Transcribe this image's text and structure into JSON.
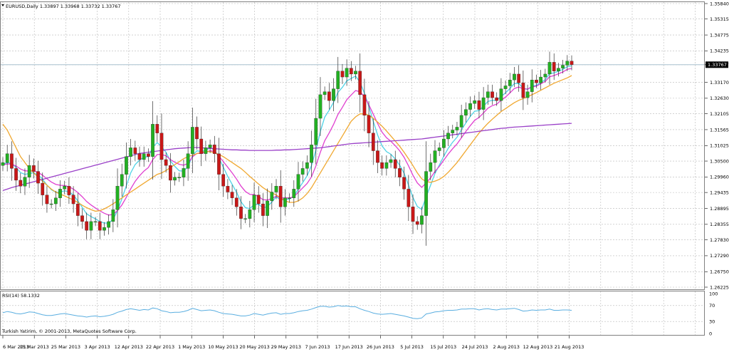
{
  "header": {
    "symbol_line": "EURUSD,Daily  1.33897 1.33968 1.33732 1.33767",
    "rsi_label": "RSI(14) 58.1332",
    "copyright": "Turkish Yatirim, © 2001-2013, MetaQuotes Software Corp."
  },
  "current_price_label": "1.33767",
  "chart_data": {
    "type": "candlestick",
    "price_axis": {
      "ylim": [
        1.26225,
        1.3584
      ],
      "ticks": [
        "1.35840",
        "1.35315",
        "1.34775",
        "1.34235",
        "1.33767",
        "1.33170",
        "1.32630",
        "1.32105",
        "1.31565",
        "1.31025",
        "1.30500",
        "1.29960",
        "1.29435",
        "1.28895",
        "1.28355",
        "1.27830",
        "1.27290",
        "1.26750",
        "1.26225"
      ]
    },
    "rsi_axis": {
      "ylim": [
        0,
        100
      ],
      "ticks": [
        "100",
        "70",
        "30",
        "0"
      ]
    },
    "x_ticks": [
      "6 Mar 2013",
      "15 Mar 2013",
      "25 Mar 2013",
      "3 Apr 2013",
      "12 Apr 2013",
      "22 Apr 2013",
      "1 May 2013",
      "10 May 2013",
      "20 May 2013",
      "29 May 2013",
      "7 Jun 2013",
      "17 Jun 2013",
      "26 Jun 2013",
      "5 Jul 2013",
      "15 Jul 2013",
      "24 Jul 2013",
      "2 Aug 2013",
      "12 Aug 2013",
      "21 Aug 2013"
    ],
    "close": [
      1.3045,
      1.3075,
      1.3025,
      1.2985,
      1.2965,
      1.2995,
      1.3035,
      1.3015,
      1.2975,
      1.2935,
      1.2905,
      1.2905,
      1.2925,
      1.2955,
      1.2965,
      1.2935,
      1.2905,
      1.2865,
      1.2845,
      1.2815,
      1.2845,
      1.2845,
      1.2815,
      1.2825,
      1.2845,
      1.2885,
      1.2965,
      1.3005,
      1.3065,
      1.3095,
      1.3075,
      1.3055,
      1.3075,
      1.3065,
      1.3175,
      1.3145,
      1.3055,
      1.3035,
      1.2985,
      1.2995,
      1.2995,
      1.3025,
      1.3075,
      1.3165,
      1.3125,
      1.3075,
      1.3095,
      1.3105,
      1.3075,
      1.3005,
      1.2965,
      1.2945,
      1.2925,
      1.2895,
      1.2855,
      1.2855,
      1.2885,
      1.2935,
      1.2905,
      1.2865,
      1.2915,
      1.2945,
      1.2965,
      1.2895,
      1.2925,
      1.2925,
      1.2955,
      1.3005,
      1.3025,
      1.3045,
      1.3105,
      1.3195,
      1.3275,
      1.3285,
      1.3255,
      1.3295,
      1.3355,
      1.3335,
      1.3365,
      1.3345,
      1.3355,
      1.3275,
      1.3205,
      1.3145,
      1.3085,
      1.3045,
      1.3025,
      1.3045,
      1.3055,
      1.3025,
      1.2995,
      1.2955,
      1.2895,
      1.2845,
      1.2835,
      1.2865,
      1.3015,
      1.3045,
      1.3085,
      1.3095,
      1.3125,
      1.3145,
      1.3155,
      1.3165,
      1.3205,
      1.3225,
      1.3245,
      1.3255,
      1.3225,
      1.3265,
      1.3285,
      1.3265,
      1.3255,
      1.3295,
      1.3305,
      1.3325,
      1.3345,
      1.3315,
      1.3265,
      1.3285,
      1.3325,
      1.3315,
      1.3335,
      1.3345,
      1.3385,
      1.3355,
      1.3365,
      1.3375,
      1.3389,
      1.3377
    ],
    "series": [
      {
        "name": "MA fast",
        "color": "#4fd3e6",
        "values": [
          1.3038,
          1.3045,
          1.3042,
          1.3028,
          1.3011,
          1.3005,
          1.3008,
          1.301,
          1.3003,
          1.2989,
          1.2969,
          1.2953,
          1.2944,
          1.2945,
          1.2949,
          1.2946,
          1.2935,
          1.2915,
          1.2893,
          1.2871,
          1.2862,
          1.2854,
          1.2845,
          1.284,
          1.284,
          1.2852,
          1.2882,
          1.2922,
          1.2966,
          1.301,
          1.3038,
          1.3053,
          1.3063,
          1.3065,
          1.3097,
          1.3113,
          1.3098,
          1.308,
          1.305,
          1.3032,
          1.3017,
          1.3016,
          1.3031,
          1.3068,
          1.3085,
          1.3082,
          1.3087,
          1.3094,
          1.3088,
          1.3061,
          1.3029,
          1.2998,
          1.2971,
          1.2944,
          1.2912,
          1.2892,
          1.2889,
          1.2902,
          1.2904,
          1.2891,
          1.2896,
          1.2911,
          1.2929,
          1.2918,
          1.292,
          1.2921,
          1.2931,
          1.2955,
          1.2977,
          1.3,
          1.3035,
          1.3088,
          1.315,
          1.3199,
          1.3222,
          1.3249,
          1.3283,
          1.33,
          1.3322,
          1.333,
          1.3338,
          1.3317,
          1.328,
          1.3235,
          1.3185,
          1.3138,
          1.3101,
          1.3082,
          1.3073,
          1.3057,
          1.3036,
          1.3009,
          1.2969,
          1.2927,
          1.2896,
          1.2886,
          1.2929,
          1.2968,
          1.3008,
          1.3037,
          1.3067,
          1.3093,
          1.3114,
          1.3131,
          1.3156,
          1.3179,
          1.3201,
          1.3219,
          1.3221,
          1.3236,
          1.3252,
          1.3256,
          1.3256,
          1.3269,
          1.3281,
          1.3296,
          1.3313,
          1.3313,
          1.3297,
          1.3293,
          1.3304,
          1.3307,
          1.3316,
          1.3326,
          1.3346,
          1.3349,
          1.3354,
          1.3361,
          1.337,
          1.3373
        ]
      },
      {
        "name": "MA medium",
        "color": "#e040d0",
        "values": [
          1.3038,
          1.304,
          1.304,
          1.3033,
          1.3023,
          1.3017,
          1.3016,
          1.3016,
          1.3012,
          1.3002,
          1.299,
          1.2979,
          1.2971,
          1.2968,
          1.2967,
          1.2963,
          1.2955,
          1.2943,
          1.2929,
          1.2913,
          1.2901,
          1.2891,
          1.2881,
          1.2873,
          1.2867,
          1.2869,
          1.2882,
          1.2901,
          1.2927,
          1.2956,
          1.2981,
          1.3,
          1.3016,
          1.3028,
          1.3055,
          1.3072,
          1.3072,
          1.3068,
          1.3055,
          1.3046,
          1.3039,
          1.3036,
          1.3042,
          1.3064,
          1.3076,
          1.3076,
          1.308,
          1.3085,
          1.3083,
          1.3067,
          1.3048,
          1.3029,
          1.301,
          1.2989,
          1.2965,
          1.2947,
          1.2937,
          1.2936,
          1.293,
          1.2919,
          1.2918,
          1.2923,
          1.2931,
          1.2925,
          1.2925,
          1.2925,
          1.2929,
          1.2944,
          1.2959,
          1.2974,
          1.2997,
          1.3034,
          1.308,
          1.3119,
          1.3145,
          1.3174,
          1.3208,
          1.3232,
          1.3258,
          1.3274,
          1.3289,
          1.3285,
          1.3268,
          1.3241,
          1.3209,
          1.3177,
          1.3148,
          1.3129,
          1.3117,
          1.3102,
          1.3085,
          1.3063,
          1.3034,
          1.3002,
          1.2976,
          1.2961,
          1.2976,
          1.2993,
          1.3015,
          1.3032,
          1.3053,
          1.3074,
          1.3092,
          1.3108,
          1.3129,
          1.315,
          1.317,
          1.3188,
          1.3198,
          1.3213,
          1.3229,
          1.3238,
          1.3243,
          1.3256,
          1.3267,
          1.3281,
          1.3296,
          1.3301,
          1.3295,
          1.3294,
          1.3301,
          1.3304,
          1.3312,
          1.332,
          1.3336,
          1.334,
          1.3346,
          1.3352,
          1.3361,
          1.3364
        ]
      },
      {
        "name": "MA slow",
        "color": "#f0a830",
        "values": [
          1.3175,
          1.3155,
          1.3125,
          1.3095,
          1.3065,
          1.3045,
          1.3025,
          1.301,
          1.2995,
          1.2982,
          1.2968,
          1.2955,
          1.2945,
          1.2938,
          1.2932,
          1.2925,
          1.2918,
          1.291,
          1.29,
          1.2892,
          1.2885,
          1.288,
          1.2882,
          1.2888,
          1.2896,
          1.2905,
          1.2915,
          1.2925,
          1.2935,
          1.2945,
          1.2955,
          1.2965,
          1.2975,
          1.2985,
          1.2995,
          1.3005,
          1.301,
          1.3018,
          1.3028,
          1.3038,
          1.3048,
          1.3058,
          1.3065,
          1.307,
          1.3075,
          1.308,
          1.3082,
          1.3082,
          1.3078,
          1.3072,
          1.3065,
          1.3055,
          1.3045,
          1.3035,
          1.3025,
          1.3012,
          1.2998,
          1.2985,
          1.2972,
          1.296,
          1.295,
          1.2942,
          1.2935,
          1.2925,
          1.2915,
          1.291,
          1.291,
          1.2915,
          1.2925,
          1.294,
          1.296,
          1.2985,
          1.301,
          1.3035,
          1.306,
          1.3085,
          1.311,
          1.3135,
          1.316,
          1.3185,
          1.32,
          1.321,
          1.321,
          1.3205,
          1.3195,
          1.3182,
          1.3168,
          1.3152,
          1.3135,
          1.3118,
          1.31,
          1.308,
          1.3058,
          1.3035,
          1.301,
          1.299,
          1.298,
          1.2978,
          1.2982,
          1.2988,
          1.2998,
          1.3012,
          1.3028,
          1.3045,
          1.3065,
          1.3085,
          1.3105,
          1.3125,
          1.3145,
          1.3162,
          1.3178,
          1.3192,
          1.3205,
          1.3218,
          1.3228,
          1.3238,
          1.3248,
          1.3256,
          1.3262,
          1.3268,
          1.3275,
          1.3282,
          1.329,
          1.3298,
          1.3306,
          1.3314,
          1.332,
          1.3326,
          1.3332,
          1.334
        ]
      },
      {
        "name": "MA long",
        "color": "#9a40c8",
        "values": [
          1.295,
          1.2955,
          1.296,
          1.2964,
          1.2968,
          1.2972,
          1.2976,
          1.298,
          1.2984,
          1.2988,
          1.2992,
          1.2996,
          1.3,
          1.3004,
          1.3008,
          1.3012,
          1.3016,
          1.302,
          1.3024,
          1.3028,
          1.3032,
          1.3036,
          1.304,
          1.3044,
          1.3048,
          1.3052,
          1.3056,
          1.306,
          1.3064,
          1.3068,
          1.3072,
          1.3076,
          1.3078,
          1.308,
          1.3082,
          1.3084,
          1.3086,
          1.3088,
          1.309,
          1.3092,
          1.3093,
          1.3094,
          1.3095,
          1.3096,
          1.3096,
          1.3095,
          1.3094,
          1.3093,
          1.3092,
          1.3091,
          1.309,
          1.3089,
          1.3088,
          1.3088,
          1.3087,
          1.3087,
          1.3086,
          1.3086,
          1.3086,
          1.3086,
          1.3086,
          1.3086,
          1.3087,
          1.3087,
          1.3088,
          1.3088,
          1.3089,
          1.309,
          1.3091,
          1.3092,
          1.3093,
          1.3094,
          1.3095,
          1.3097,
          1.3099,
          1.3101,
          1.3103,
          1.3105,
          1.3107,
          1.3109,
          1.311,
          1.3111,
          1.3112,
          1.3113,
          1.3114,
          1.3115,
          1.3116,
          1.3117,
          1.3118,
          1.3119,
          1.312,
          1.3121,
          1.3122,
          1.3123,
          1.3124,
          1.3125,
          1.3127,
          1.3129,
          1.3131,
          1.3133,
          1.3135,
          1.3137,
          1.3139,
          1.3141,
          1.3143,
          1.3145,
          1.3147,
          1.3149,
          1.3151,
          1.3153,
          1.3155,
          1.3157,
          1.3159,
          1.3161,
          1.3162,
          1.3164,
          1.3165,
          1.3166,
          1.3167,
          1.3168,
          1.3169,
          1.317,
          1.3171,
          1.3172,
          1.3173,
          1.3174,
          1.3175,
          1.3176,
          1.3177,
          1.3178
        ]
      }
    ],
    "rsi": [
      52,
      55,
      53,
      50,
      49,
      51,
      54,
      53,
      50,
      47,
      45,
      45,
      47,
      49,
      50,
      48,
      46,
      44,
      43,
      41,
      43,
      44,
      42,
      43,
      45,
      48,
      53,
      56,
      60,
      62,
      60,
      58,
      60,
      59,
      64,
      62,
      57,
      55,
      52,
      53,
      53,
      55,
      58,
      63,
      60,
      57,
      58,
      59,
      57,
      53,
      50,
      49,
      48,
      46,
      44,
      44,
      46,
      50,
      48,
      46,
      49,
      51,
      52,
      48,
      50,
      50,
      52,
      55,
      57,
      58,
      61,
      65,
      68,
      68,
      66,
      67,
      70,
      68,
      69,
      67,
      67,
      62,
      58,
      55,
      51,
      49,
      48,
      49,
      50,
      48,
      46,
      44,
      41,
      38,
      37,
      39,
      49,
      51,
      54,
      55,
      57,
      58,
      58,
      59,
      61,
      61,
      62,
      62,
      59,
      61,
      62,
      60,
      59,
      61,
      61,
      62,
      63,
      60,
      56,
      57,
      59,
      58,
      59,
      59,
      61,
      58,
      58,
      59,
      59,
      58
    ]
  }
}
